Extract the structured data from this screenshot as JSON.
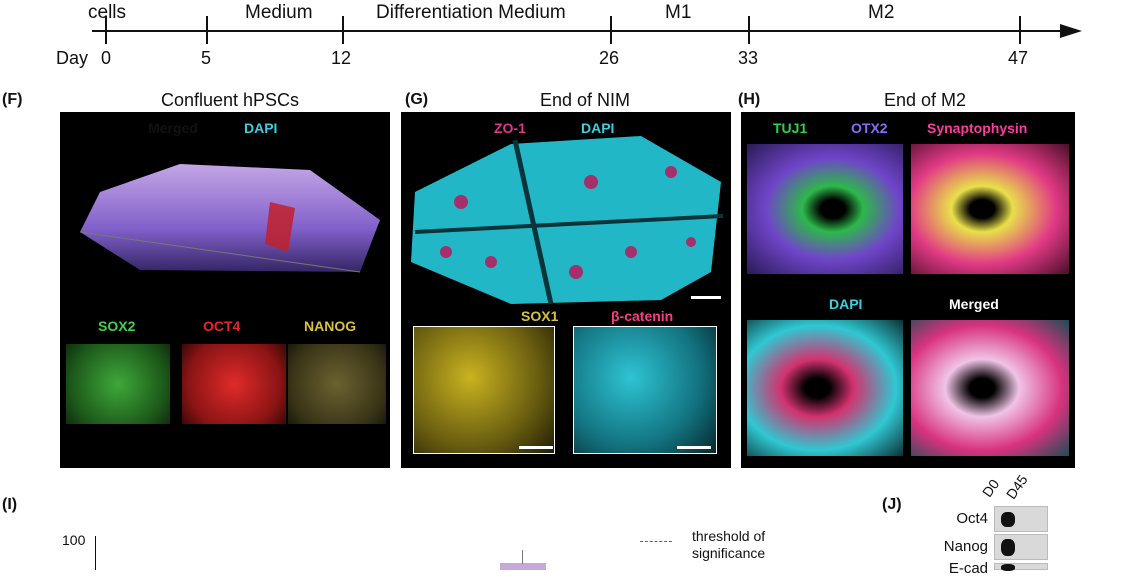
{
  "timeline": {
    "phases": [
      "cells",
      "Medium",
      "Differentiation Medium",
      "M1",
      "M2"
    ],
    "day_label": "Day",
    "days": [
      "0",
      "5",
      "12",
      "26",
      "33",
      "47"
    ]
  },
  "panels": {
    "F": {
      "letter": "(F)",
      "title": "Confluent hPSCs",
      "top_channels": [
        "Merged",
        "DAPI"
      ],
      "bottom_channels": [
        "SOX2",
        "OCT4",
        "NANOG"
      ]
    },
    "G": {
      "letter": "(G)",
      "title": "End of NIM",
      "top_channels": [
        "ZO-1",
        "DAPI"
      ],
      "inset_channels": [
        "SOX1",
        "β-catenin"
      ]
    },
    "H": {
      "letter": "(H)",
      "title": "End of M2",
      "top_channels": [
        "TUJ1",
        "OTX2",
        "Synaptophysin"
      ],
      "bottom_channels": [
        "DAPI",
        "Merged"
      ]
    },
    "I": {
      "letter": "(I)",
      "y_tick": "100",
      "legend": [
        "threshold of",
        "significance"
      ]
    },
    "J": {
      "letter": "(J)",
      "lanes": [
        "D0",
        "D45"
      ],
      "rows": [
        "Oct4",
        "Nanog",
        "E-cad"
      ]
    }
  },
  "colors": {
    "sox2": "#3fd24a",
    "oct4": "#e8252b",
    "nanog": "#d8c43a",
    "dapi": "#3ad0e0",
    "zo1": "#e0368f",
    "tuj1": "#2ed14a",
    "otx2": "#8a6bff",
    "synaptophysin": "#ff3aa0",
    "merged": "#ffffff"
  }
}
